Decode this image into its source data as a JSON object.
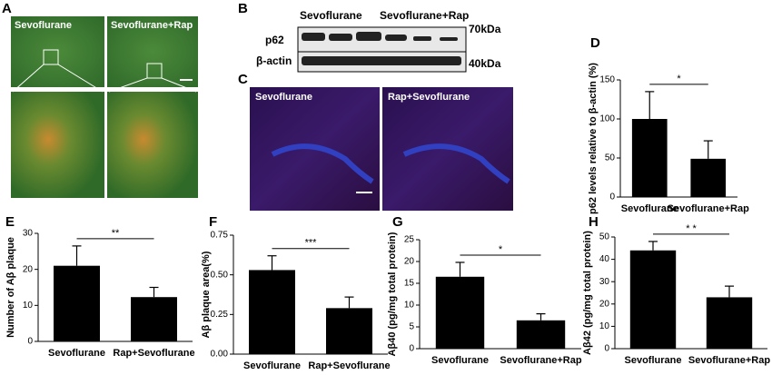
{
  "images": {
    "A": {
      "letter": "A",
      "labels": [
        "Sevoflurane",
        "Sevoflurane+Rap"
      ]
    },
    "B": {
      "letter": "B",
      "groups": [
        "Sevoflurane",
        "Sevoflurane+Rap"
      ],
      "rows": [
        "p62",
        "β-actin"
      ],
      "sizes": [
        "70kDa",
        "40kDa"
      ]
    },
    "C": {
      "letter": "C",
      "labels": [
        "Sevoflurane",
        "Rap+Sevoflurane"
      ]
    }
  },
  "chart_data": [
    {
      "type": "bar",
      "letter": "D",
      "y_label": "p62  levels relative to β-actin (%)",
      "categories": [
        "Sevoflurane",
        "Sevoflurane+Rap"
      ],
      "values": [
        100,
        49
      ],
      "errors": [
        35,
        23
      ],
      "color": "#000000",
      "ylim": [
        0,
        150
      ],
      "yticks": [
        0,
        50,
        100,
        150
      ],
      "significance": "*"
    },
    {
      "type": "bar",
      "letter": "E",
      "y_label": "Number of Aβ plaque",
      "categories": [
        "Sevoflurane",
        "Rap+Sevoflurane"
      ],
      "values": [
        21,
        12.3
      ],
      "errors": [
        5.5,
        2.7
      ],
      "color": "#000000",
      "ylim": [
        0,
        30
      ],
      "yticks": [
        0,
        10,
        20,
        30
      ],
      "significance": "**"
    },
    {
      "type": "bar",
      "letter": "F",
      "y_label": "Aβ plaque area(%)",
      "categories": [
        "Sevoflurane",
        "Rap+Sevoflurane"
      ],
      "values": [
        0.53,
        0.29
      ],
      "errors": [
        0.09,
        0.07
      ],
      "color": "#000000",
      "ylim": [
        0,
        0.75
      ],
      "yticks": [
        {
          "value": 0,
          "label": "0.00"
        },
        0.25,
        {
          "value": 0.5,
          "label": "0.50"
        },
        0.75
      ],
      "significance": "***"
    },
    {
      "type": "bar",
      "letter": "G",
      "y_label": "Aβ40 (pg/mg total protein)",
      "categories": [
        "Sevoflurane",
        "Sevoflurane+Rap"
      ],
      "values": [
        16.5,
        6.5
      ],
      "errors": [
        3.3,
        1.5
      ],
      "color": "#000000",
      "ylim": [
        0,
        25
      ],
      "yticks": [
        0,
        5,
        10,
        15,
        20,
        25
      ],
      "significance": "*"
    },
    {
      "type": "bar",
      "letter": "H",
      "y_label": "Aβ42 (pg/mg total protein)",
      "categories": [
        "Sevoflurane",
        "Sevoflurane+Rap"
      ],
      "values": [
        44,
        23
      ],
      "errors": [
        4,
        5
      ],
      "color": "#000000",
      "ylim": [
        0,
        50
      ],
      "yticks": [
        0,
        10,
        20,
        30,
        40,
        50
      ],
      "significance": "* *"
    }
  ]
}
